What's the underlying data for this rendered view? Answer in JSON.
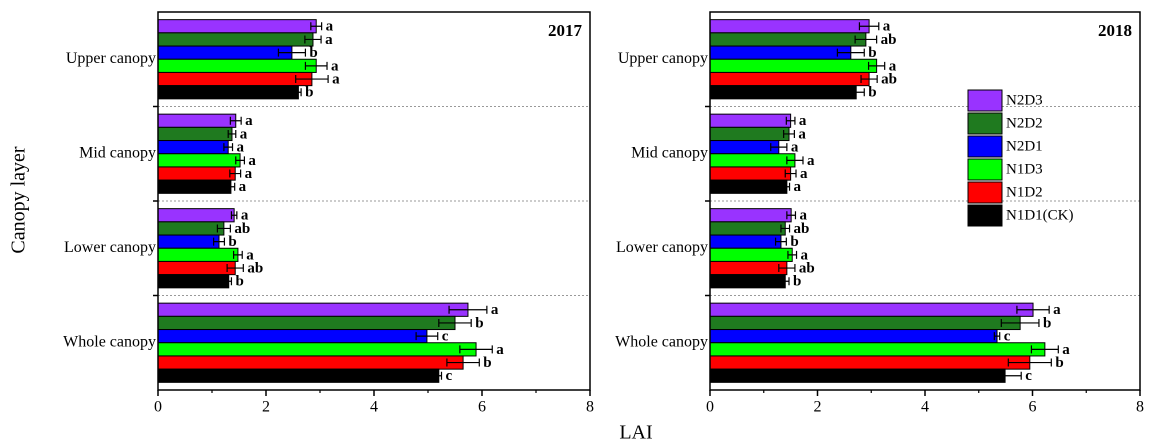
{
  "chart_data": [
    {
      "type": "bar",
      "orientation": "horizontal",
      "annotation": "2017",
      "ylabel": "Canopy layer",
      "xlabel": "LAI",
      "categories": [
        "Upper canopy",
        "Mid canopy",
        "Lower canopy",
        "Whole canopy"
      ],
      "xlim": [
        0,
        8
      ],
      "xticks": [
        0,
        2,
        4,
        6,
        8
      ],
      "series": [
        {
          "name": "N2D3",
          "color": "#9933ff",
          "values": [
            2.93,
            1.44,
            1.41,
            5.74
          ],
          "errors": [
            0.1,
            0.1,
            0.05,
            0.35
          ],
          "letters": [
            "a",
            "a",
            "a",
            "a"
          ]
        },
        {
          "name": "N2D2",
          "color": "#1f7a1f",
          "values": [
            2.87,
            1.37,
            1.22,
            5.5
          ],
          "errors": [
            0.15,
            0.07,
            0.12,
            0.3
          ],
          "letters": [
            "a",
            "a",
            "ab",
            "b"
          ]
        },
        {
          "name": "N2D1",
          "color": "#0000ff",
          "values": [
            2.48,
            1.3,
            1.13,
            4.98
          ],
          "errors": [
            0.25,
            0.08,
            0.1,
            0.2
          ],
          "letters": [
            "b",
            "a",
            "b",
            "c"
          ]
        },
        {
          "name": "N1D3",
          "color": "#00ff00",
          "values": [
            2.93,
            1.52,
            1.48,
            5.89
          ],
          "errors": [
            0.2,
            0.08,
            0.08,
            0.3
          ],
          "letters": [
            "a",
            "a",
            "a",
            "a"
          ]
        },
        {
          "name": "N1D2",
          "color": "#ff0000",
          "values": [
            2.85,
            1.43,
            1.43,
            5.65
          ],
          "errors": [
            0.3,
            0.1,
            0.15,
            0.3
          ],
          "letters": [
            "a",
            "a",
            "ab",
            "b"
          ]
        },
        {
          "name": "N1D1(CK)",
          "color": "#000000",
          "values": [
            2.6,
            1.35,
            1.31,
            5.2
          ],
          "errors": [
            0.05,
            0.07,
            0.05,
            0.05
          ],
          "letters": [
            "b",
            "a",
            "b",
            "c"
          ]
        }
      ]
    },
    {
      "type": "bar",
      "orientation": "horizontal",
      "annotation": "2018",
      "legend": "right",
      "categories": [
        "Upper canopy",
        "Mid canopy",
        "Lower canopy",
        "Whole canopy"
      ],
      "xlim": [
        0,
        8
      ],
      "xticks": [
        0,
        2,
        4,
        6,
        8
      ],
      "series": [
        {
          "name": "N2D3",
          "color": "#9933ff",
          "values": [
            2.96,
            1.5,
            1.51,
            6.01
          ],
          "errors": [
            0.18,
            0.08,
            0.08,
            0.3
          ],
          "letters": [
            "a",
            "a",
            "a",
            "a"
          ]
        },
        {
          "name": "N2D2",
          "color": "#1f7a1f",
          "values": [
            2.9,
            1.47,
            1.4,
            5.77
          ],
          "errors": [
            0.2,
            0.1,
            0.08,
            0.35
          ],
          "letters": [
            "ab",
            "a",
            "ab",
            "b"
          ]
        },
        {
          "name": "N2D1",
          "color": "#0000ff",
          "values": [
            2.62,
            1.28,
            1.32,
            5.34
          ],
          "errors": [
            0.25,
            0.15,
            0.1,
            0.05
          ],
          "letters": [
            "b",
            "a",
            "b",
            "c"
          ]
        },
        {
          "name": "N1D3",
          "color": "#00ff00",
          "values": [
            3.1,
            1.58,
            1.53,
            6.23
          ],
          "errors": [
            0.15,
            0.15,
            0.08,
            0.25
          ],
          "letters": [
            "a",
            "a",
            "a",
            "a"
          ]
        },
        {
          "name": "N1D2",
          "color": "#ff0000",
          "values": [
            2.96,
            1.5,
            1.43,
            5.95
          ],
          "errors": [
            0.15,
            0.1,
            0.15,
            0.4
          ],
          "letters": [
            "ab",
            "a",
            "ab",
            "b"
          ]
        },
        {
          "name": "N1D1(CK)",
          "color": "#000000",
          "values": [
            2.72,
            1.43,
            1.4,
            5.49
          ],
          "errors": [
            0.15,
            0.05,
            0.07,
            0.3
          ],
          "letters": [
            "b",
            "a",
            "b",
            "c"
          ]
        }
      ]
    }
  ]
}
